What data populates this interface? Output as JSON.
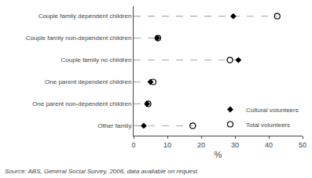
{
  "chart_data": {
    "type": "dot",
    "orientation": "horizontal",
    "categories": [
      "Couple family dependent children",
      "Couple family non-dependent children",
      "Couple family no children",
      "One parent dependent children",
      "One parent non-dependent children",
      "Other family"
    ],
    "series": [
      {
        "name": "Cultural volunteers",
        "color": "#000000",
        "marker": "diamond",
        "values": [
          29.5,
          7.0,
          31.0,
          5.0,
          4.0,
          3.0
        ]
      },
      {
        "name": "Total volunteers",
        "color": "#000000",
        "marker": "circle-open",
        "values": [
          42.5,
          7.2,
          28.5,
          5.8,
          4.3,
          17.5
        ]
      }
    ],
    "xlabel": "%",
    "xlim": [
      0,
      50
    ],
    "xticks": [
      0,
      10,
      20,
      30,
      40,
      50
    ],
    "line_style": "dashed",
    "grid": false,
    "legend": "lower right",
    "annotations": [
      "Source: ABS, General Social Survey, 2006, data available on request."
    ]
  }
}
